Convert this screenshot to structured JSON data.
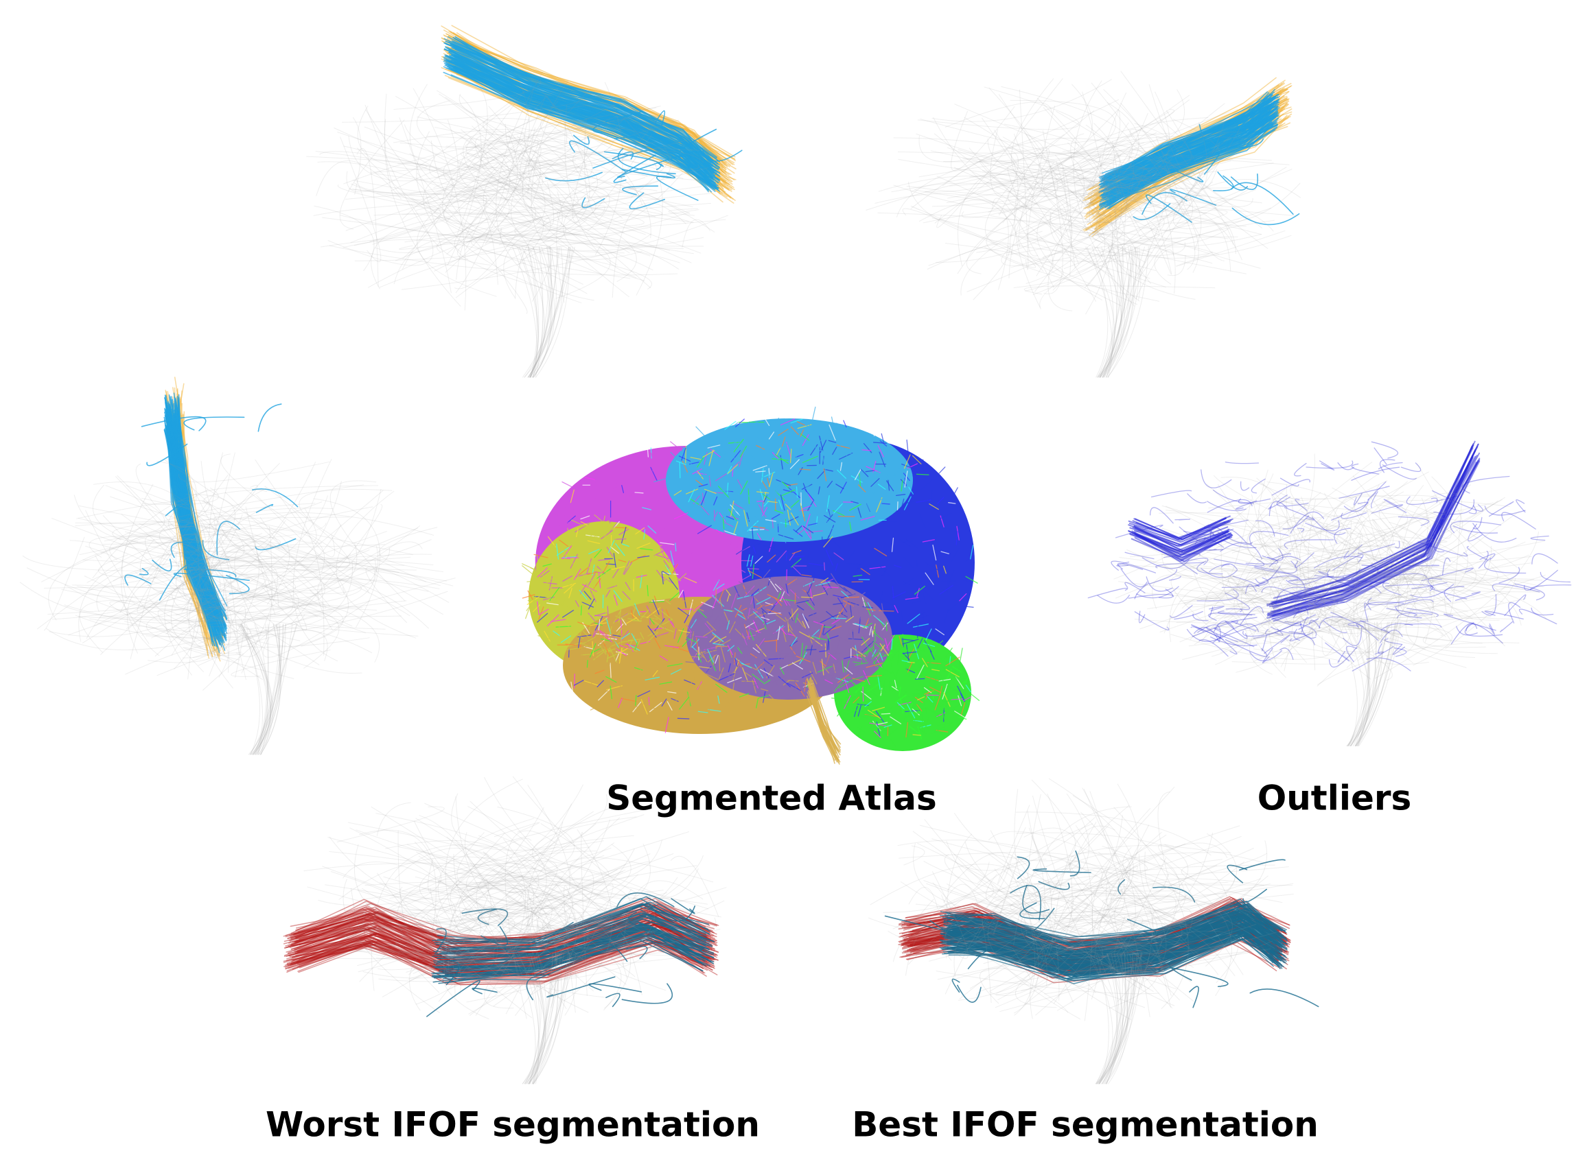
{
  "labels": {
    "atlas": "Segmented Atlas",
    "outliers": "Outliers",
    "worst": "Worst IFOF segmentation",
    "best": "Best IFOF segmentation"
  }
}
